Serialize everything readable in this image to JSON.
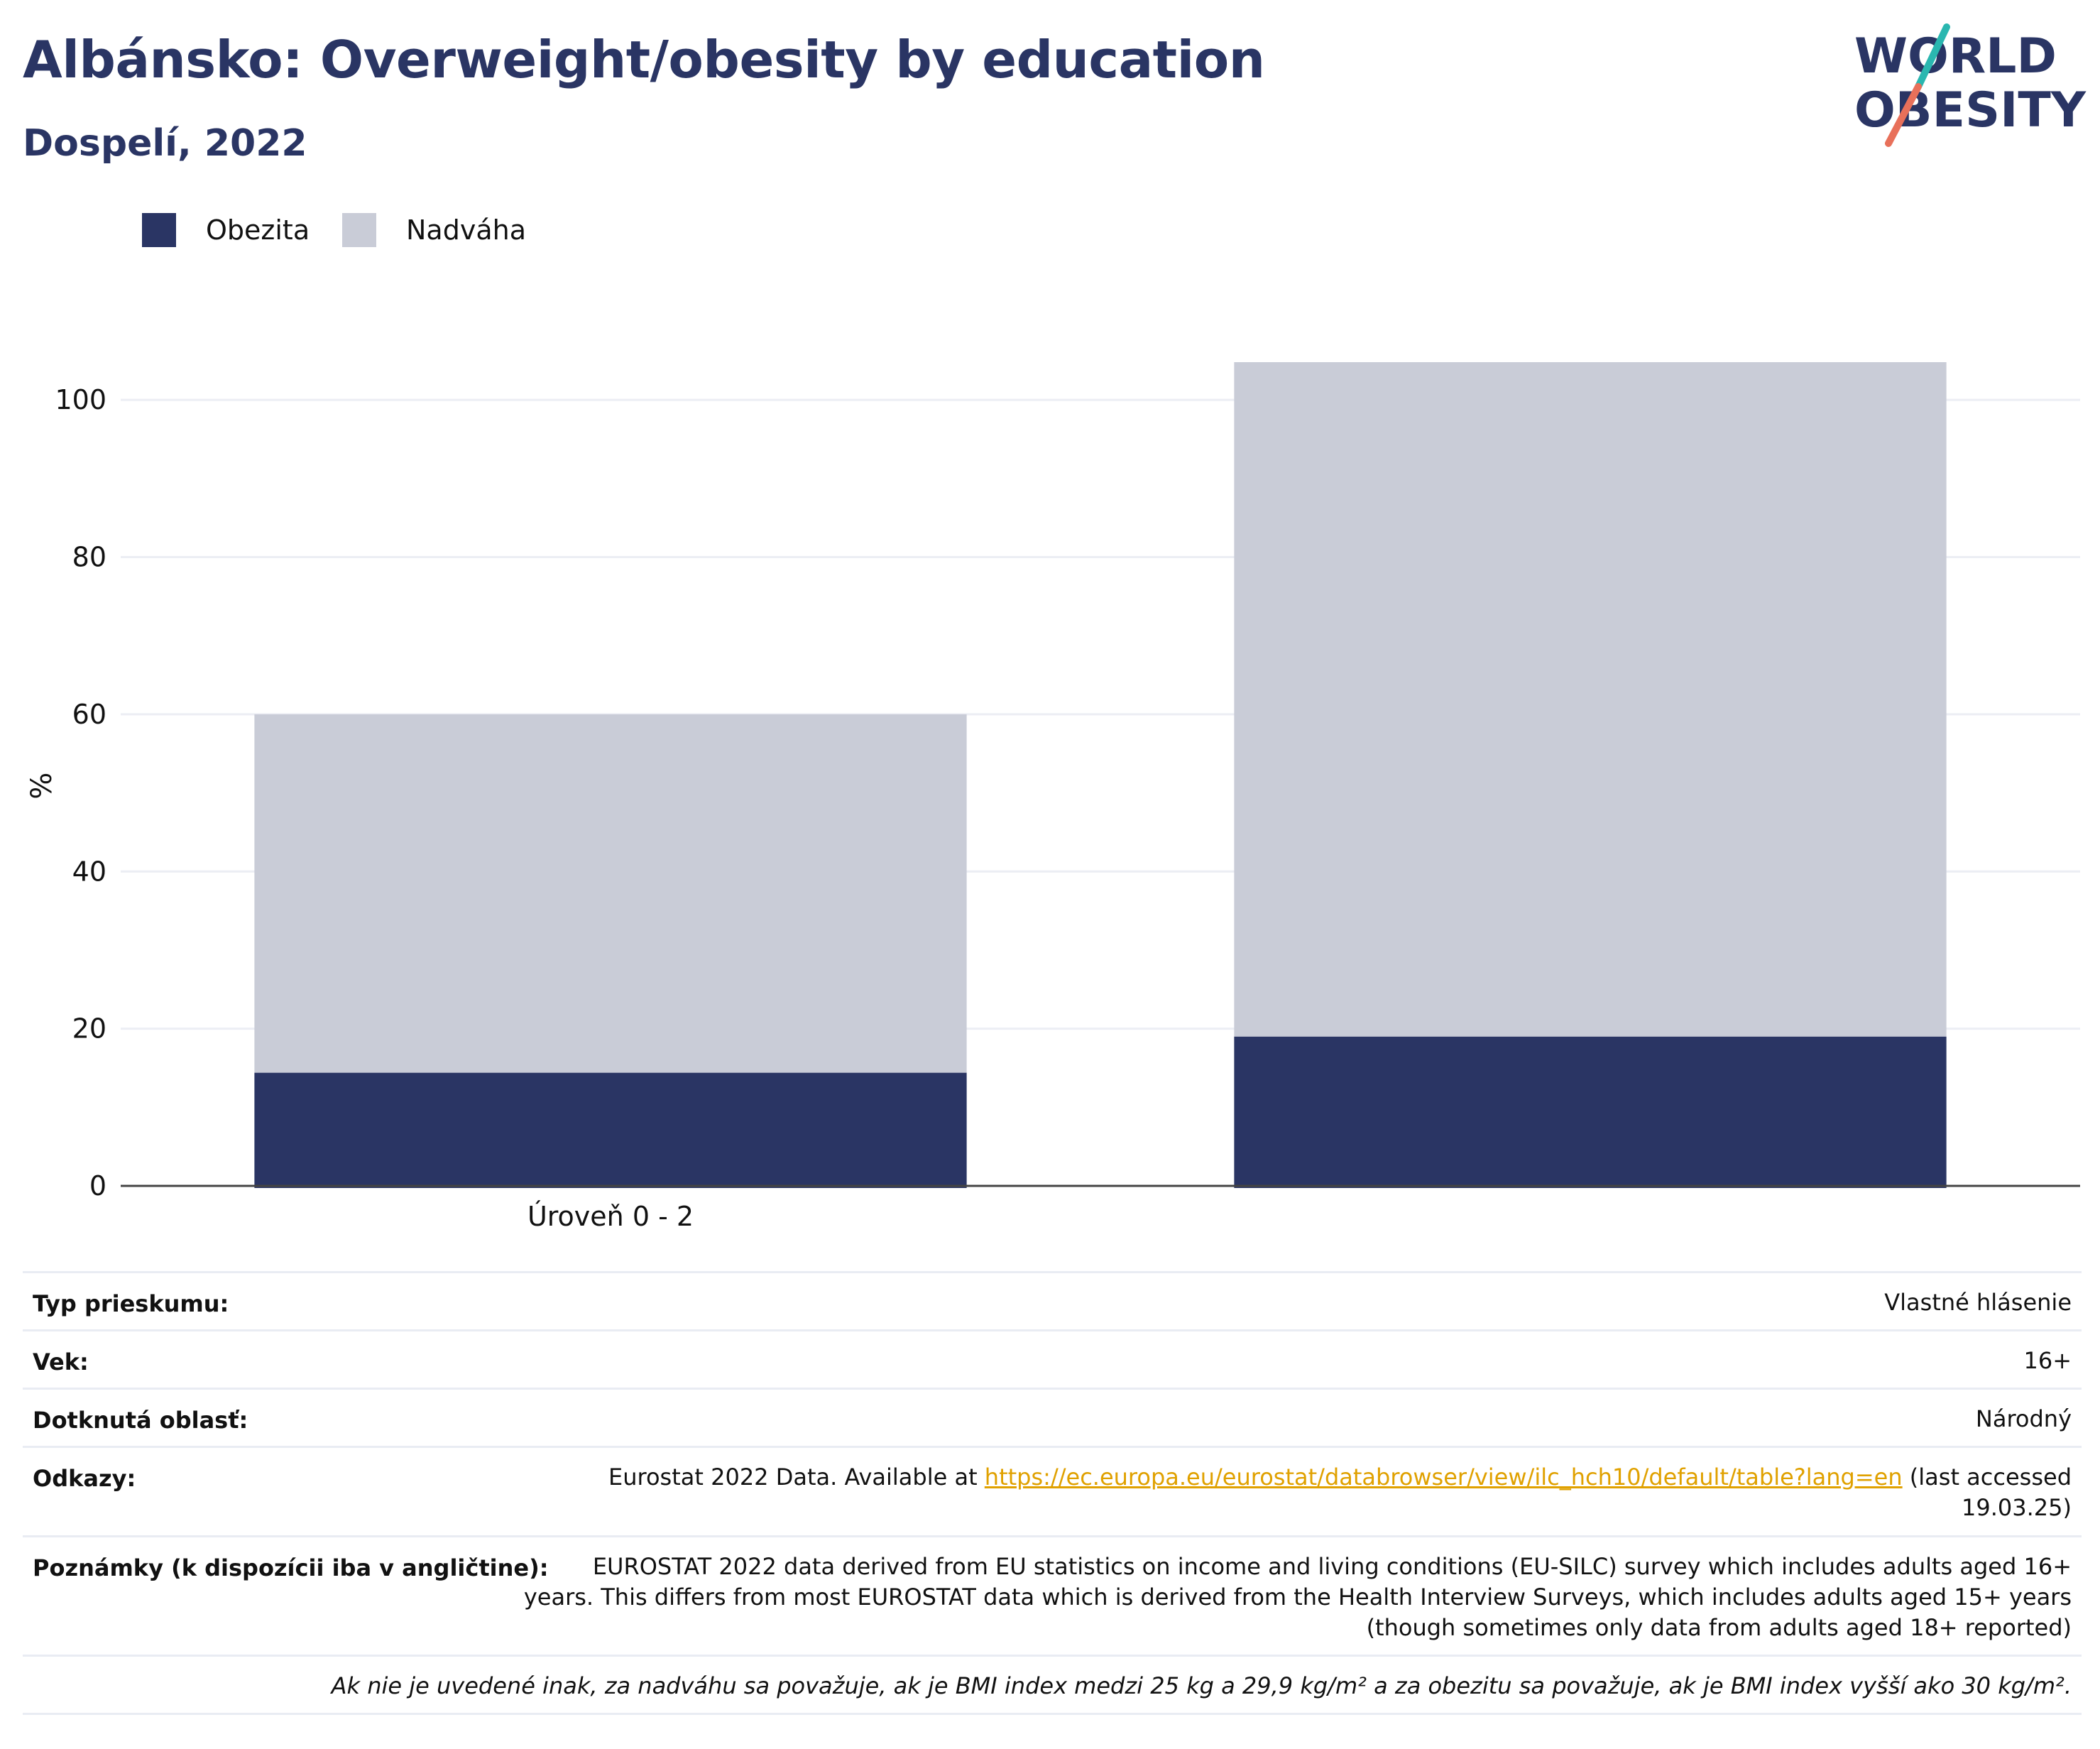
{
  "header": {
    "title": "Albánsko: Overweight/obesity by education",
    "subtitle": "Dospelí, 2022"
  },
  "logo": {
    "line1": "WORLD",
    "line2": "OBESITY",
    "colors": {
      "text": "#2a3564",
      "slash_top": "#2ab7b0",
      "slash_bottom": "#e8705a"
    }
  },
  "legend": [
    {
      "label": "Obezita",
      "color": "#2a3564"
    },
    {
      "label": "Nadváha",
      "color": "#c9ccd7"
    }
  ],
  "chart_data": {
    "type": "bar",
    "stacked": true,
    "categories": [
      "Úroveň 0 - 2",
      ""
    ],
    "series": [
      {
        "name": "Obezita",
        "color": "#2a3564",
        "values": [
          14.4,
          19.0
        ]
      },
      {
        "name": "Nadváha",
        "color": "#c9ccd7",
        "values": [
          45.6,
          85.8
        ]
      }
    ],
    "ylabel": "%",
    "xlabel": "",
    "ylim": [
      0,
      104.8
    ],
    "yticks": [
      0,
      20,
      40,
      60,
      80,
      100
    ],
    "grid": true,
    "legend_position": "top-left"
  },
  "info_rows": [
    {
      "label": "Typ prieskumu:",
      "value": "Vlastné hlásenie"
    },
    {
      "label": "Vek:",
      "value": "16+"
    },
    {
      "label": "Dotknutá oblasť:",
      "value": "Národný"
    },
    {
      "label": "Odkazy:",
      "value_prefix": "Eurostat 2022 Data. Available at ",
      "link": "https://ec.europa.eu/eurostat/databrowser/view/ilc_hch10/default/table?lang=en",
      "value_suffix_1": " (last accessed",
      "value_suffix_2": "19.03.25)"
    },
    {
      "label": "Poznámky (k dispozícii iba v angličtine):",
      "lines": [
        "EUROSTAT 2022 data derived from EU statistics on income and living conditions (EU-SILC) survey which includes adults aged 16+",
        "years. This differs from most EUROSTAT data which is derived from the Health Interview Surveys, which includes adults aged 15+ years",
        "(though sometimes only data from adults aged 18+ reported)"
      ]
    }
  ],
  "footnote": "Ak nie je uvedené inak, za nadváhu sa považuje, ak je BMI index medzi 25 kg a 29,9 kg/m² a za obezitu sa považuje, ak je BMI index vyšší ako 30 kg/m²."
}
